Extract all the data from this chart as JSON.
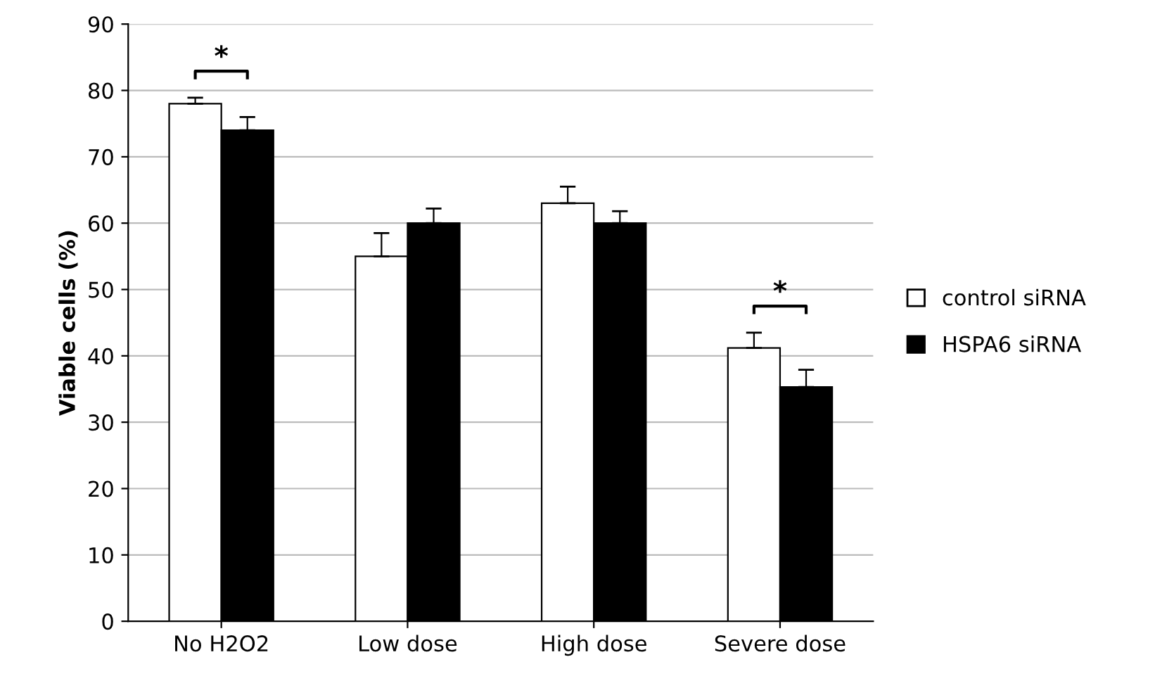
{
  "chart_data": {
    "type": "bar",
    "ylabel": "Viable cells (%)",
    "categories": [
      "No H2O2",
      "Low dose",
      "High dose",
      "Severe dose"
    ],
    "series": [
      {
        "name": "control siRNA",
        "color": "#ffffff",
        "values": [
          78,
          55,
          63,
          41.2
        ],
        "errors": [
          0.9,
          3.5,
          2.5,
          2.3
        ]
      },
      {
        "name": "HSPA6 siRNA",
        "color": "#000000",
        "values": [
          74,
          60,
          60,
          35.3
        ],
        "errors": [
          2,
          2.2,
          1.8,
          2.6
        ]
      }
    ],
    "annotations": [
      "*",
      "*"
    ],
    "ylim": [
      0,
      90
    ],
    "yticks": [
      0,
      10,
      20,
      30,
      40,
      50,
      60,
      70,
      80,
      90
    ],
    "grid": "y",
    "legend": "right"
  }
}
